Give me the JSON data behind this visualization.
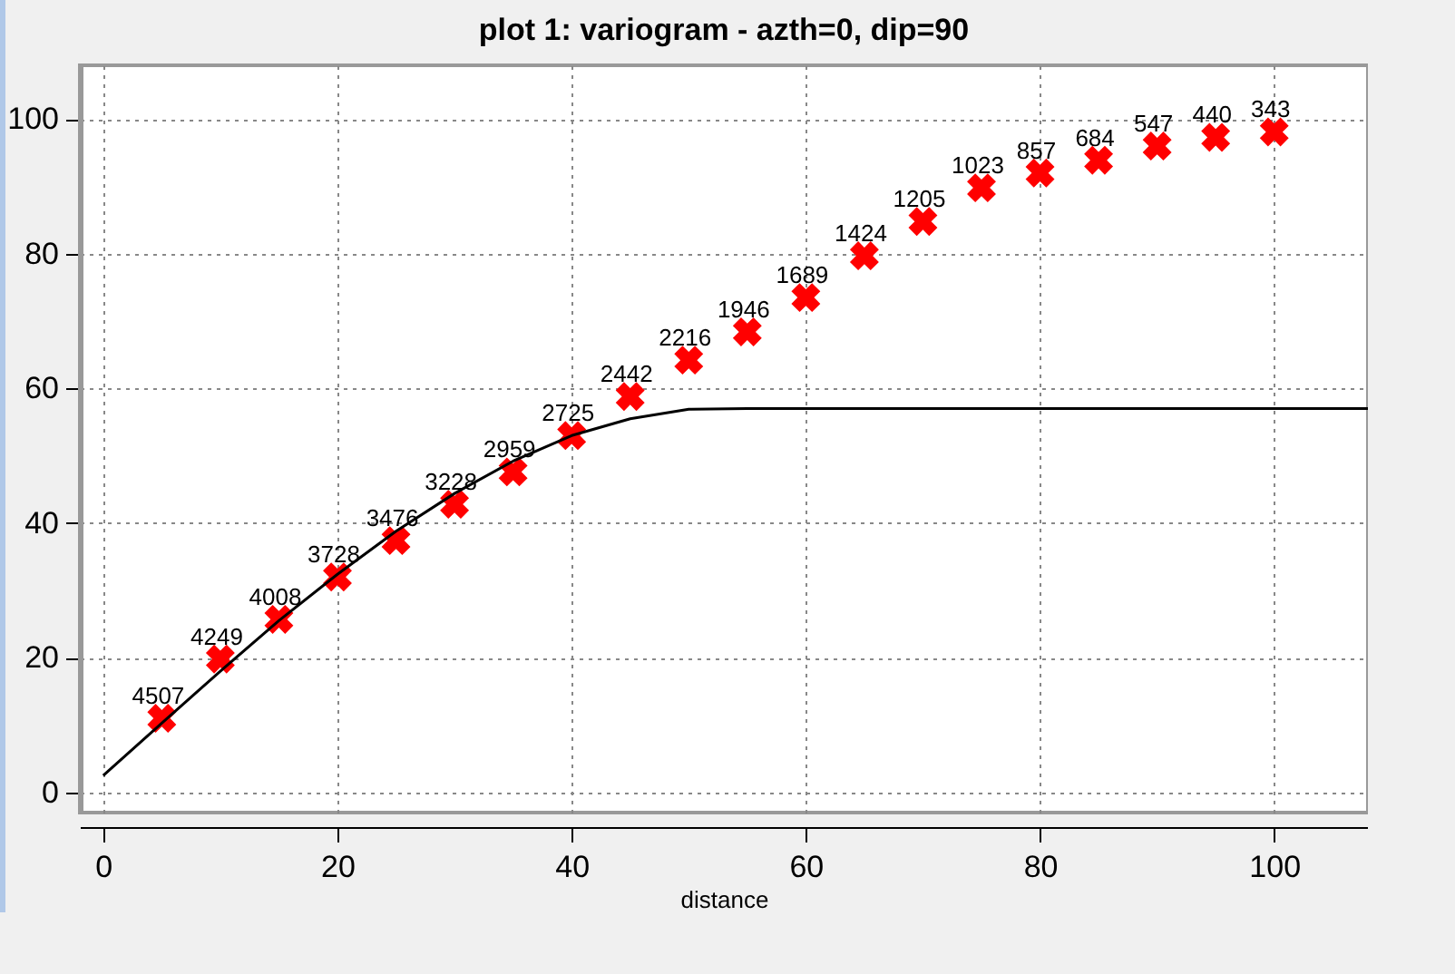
{
  "chart_data": {
    "type": "scatter",
    "title": "plot 1:  variogram - azth=0, dip=90",
    "xlabel": "distance",
    "xlim": [
      -2,
      108
    ],
    "ylim": [
      -3,
      108
    ],
    "xticks": [
      0,
      20,
      40,
      60,
      80,
      100
    ],
    "yticks": [
      0,
      20,
      40,
      60,
      80,
      100
    ],
    "grid": true,
    "series": [
      {
        "marker": "cross",
        "color": "#ff0000",
        "x": [
          5,
          10,
          15,
          20,
          25,
          30,
          35,
          40,
          45,
          50,
          55,
          60,
          65,
          70,
          75,
          80,
          85,
          90,
          95,
          100
        ],
        "values": [
          11,
          19.8,
          25.7,
          32,
          37.4,
          42.8,
          47.6,
          53,
          58.8,
          64.2,
          68.4,
          73.5,
          79.7,
          84.8,
          89.8,
          92,
          93.9,
          96,
          97.3,
          98.1
        ]
      },
      {
        "type": "line",
        "color": "#000000",
        "x": [
          0,
          5,
          10,
          15,
          20,
          25,
          30,
          35,
          40,
          45,
          50,
          55,
          60,
          80,
          100,
          108
        ],
        "values": [
          2.5,
          10.3,
          18,
          25.5,
          32.4,
          38.8,
          44.4,
          49.2,
          53,
          55.5,
          56.9,
          57,
          57,
          57,
          57,
          57
        ]
      }
    ],
    "annotations": [
      {
        "text": "4507",
        "x": 5,
        "y": 11
      },
      {
        "text": "4249",
        "x": 10,
        "y": 19.8
      },
      {
        "text": "4008",
        "x": 15,
        "y": 25.7
      },
      {
        "text": "3728",
        "x": 20,
        "y": 32
      },
      {
        "text": "3476",
        "x": 25,
        "y": 37.4
      },
      {
        "text": "3228",
        "x": 30,
        "y": 42.8
      },
      {
        "text": "2959",
        "x": 35,
        "y": 47.6
      },
      {
        "text": "2725",
        "x": 40,
        "y": 53
      },
      {
        "text": "2442",
        "x": 45,
        "y": 58.8
      },
      {
        "text": "2216",
        "x": 50,
        "y": 64.2
      },
      {
        "text": "1946",
        "x": 55,
        "y": 68.4
      },
      {
        "text": "1689",
        "x": 60,
        "y": 73.5
      },
      {
        "text": "1424",
        "x": 65,
        "y": 79.7
      },
      {
        "text": "1205",
        "x": 70,
        "y": 84.8
      },
      {
        "text": "1023",
        "x": 75,
        "y": 89.8
      },
      {
        "text": "857",
        "x": 80,
        "y": 92
      },
      {
        "text": "684",
        "x": 85,
        "y": 93.9
      },
      {
        "text": "547",
        "x": 90,
        "y": 96
      },
      {
        "text": "440",
        "x": 95,
        "y": 97.3
      },
      {
        "text": "343",
        "x": 100,
        "y": 98.1
      }
    ]
  }
}
